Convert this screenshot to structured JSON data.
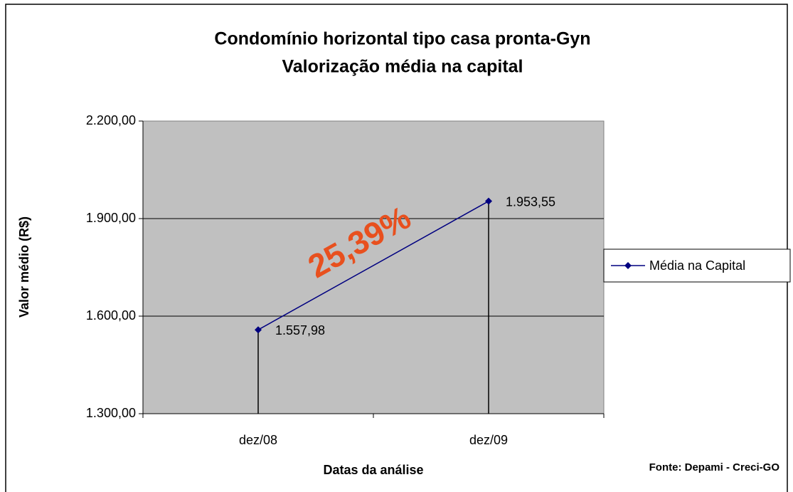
{
  "chart_data": {
    "type": "line",
    "title": "Condomínio horizontal tipo casa pronta-Gyn",
    "subtitle": "Valorização média na capital",
    "x_label": "Datas da análise",
    "y_label": "Valor médio (R$)",
    "categories": [
      "dez/08",
      "dez/09"
    ],
    "series": [
      {
        "name": "Média na Capital",
        "color": "#000080",
        "values": [
          1557.98,
          1953.55
        ],
        "value_labels": [
          "1.557,98",
          "1.953,55"
        ]
      }
    ],
    "ylim": [
      1300,
      2200
    ],
    "yticks": [
      {
        "value": 1300,
        "label": "1.300,00"
      },
      {
        "value": 1600,
        "label": "1.600,00"
      },
      {
        "value": 1900,
        "label": "1.900,00"
      },
      {
        "value": 2200,
        "label": "2.200,00"
      }
    ],
    "grid": true,
    "drop_lines": true,
    "legend": "right",
    "annotation": "25,39%",
    "source": "Fonte: Depami - Creci-GO"
  }
}
